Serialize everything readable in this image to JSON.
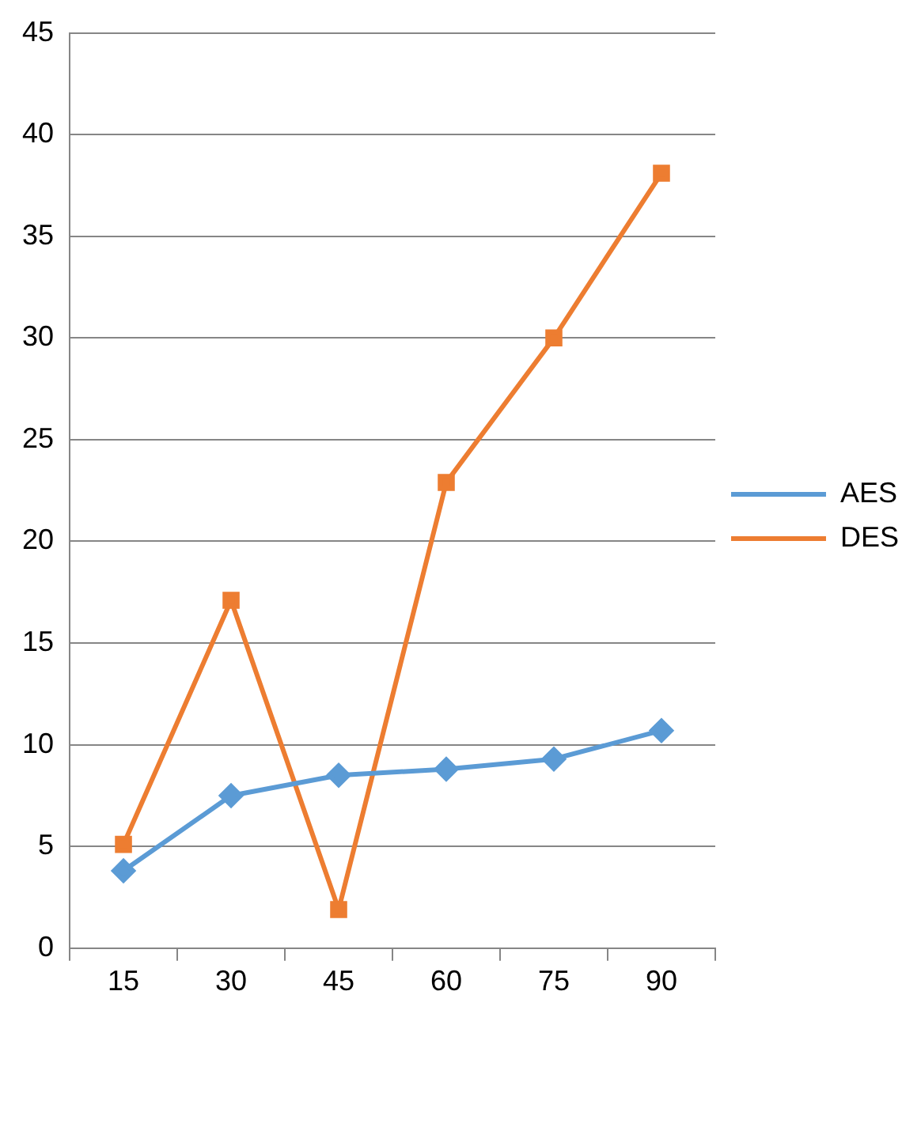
{
  "chart_data": {
    "type": "line",
    "categories": [
      "15",
      "30",
      "45",
      "60",
      "75",
      "90"
    ],
    "series": [
      {
        "name": "AES",
        "color": "#5b9bd5",
        "marker": "diamond",
        "values": [
          3.8,
          7.5,
          8.5,
          8.8,
          9.3,
          10.7
        ]
      },
      {
        "name": "DES",
        "color": "#ed7d31",
        "marker": "square",
        "values": [
          5.1,
          17.1,
          1.9,
          22.9,
          30,
          38.1
        ]
      }
    ],
    "ylim": [
      0,
      45
    ],
    "yticks": [
      0,
      5,
      10,
      15,
      20,
      25,
      30,
      35,
      40,
      45
    ],
    "grid": "y",
    "legend": "right"
  }
}
